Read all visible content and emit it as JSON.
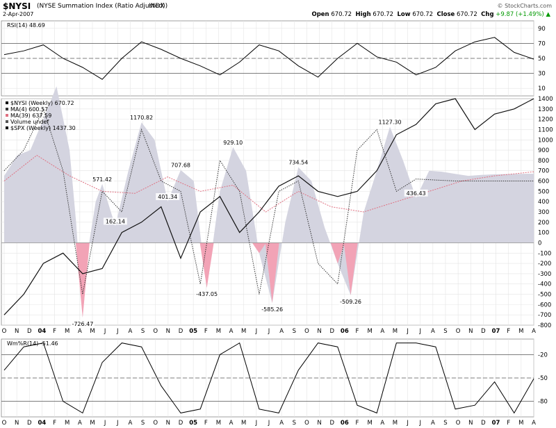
{
  "header": {
    "symbol": "$NYSI",
    "description": "(NYSE Summation Index (Ratio Adjusted))",
    "exchange": "INDX",
    "date": "2-Apr-2007",
    "brand": "© StockCharts.com",
    "open": "670.72",
    "high": "670.72",
    "low": "670.72",
    "close": "670.72",
    "chg": "+9.87 (+1.49%)",
    "open_label": "Open",
    "high_label": "High",
    "low_label": "Low",
    "close_label": "Close",
    "chg_label": "Chg",
    "up_arrow": "▲"
  },
  "colors": {
    "nysi_fill": "#d4d4e0",
    "neg_fill": "#f2a3b6",
    "ma39": "#e07080",
    "rsi_fill": "#707070",
    "grid": "#e4e4e4"
  },
  "chart_data": [
    {
      "type": "line",
      "panel": "rsi",
      "legend": "RSI(14) 48.69",
      "ylim": [
        0,
        100
      ],
      "yticks": [
        10,
        30,
        50,
        70,
        90
      ],
      "reference_lines": [
        30,
        50,
        70
      ],
      "x": [
        0,
        3,
        6,
        9,
        12,
        15,
        18,
        21,
        24,
        27,
        30,
        33,
        36,
        39,
        42,
        45,
        48,
        51,
        54,
        57,
        60,
        63,
        66,
        69,
        72,
        75,
        78,
        81
      ],
      "values": [
        55,
        60,
        68,
        50,
        38,
        22,
        50,
        72,
        62,
        50,
        40,
        28,
        45,
        68,
        60,
        40,
        25,
        50,
        70,
        52,
        45,
        28,
        38,
        60,
        72,
        78,
        58,
        49
      ]
    },
    {
      "type": "area",
      "panel": "main",
      "x_labels": [
        "O",
        "N",
        "D",
        "04",
        "F",
        "M",
        "A",
        "M",
        "J",
        "J",
        "A",
        "S",
        "O",
        "N",
        "D",
        "05",
        "F",
        "M",
        "A",
        "M",
        "J",
        "J",
        "A",
        "S",
        "O",
        "N",
        "D",
        "06",
        "F",
        "M",
        "A",
        "M",
        "J",
        "J",
        "A",
        "S",
        "O",
        "N",
        "D",
        "07",
        "F",
        "M",
        "A"
      ],
      "ylim": [
        -800,
        1400
      ],
      "yticks": [
        -800,
        -700,
        -600,
        -500,
        -400,
        -300,
        -200,
        -100,
        0,
        100,
        200,
        300,
        400,
        500,
        600,
        700,
        800,
        900,
        1000,
        1100,
        1200,
        1300,
        1400
      ],
      "legend": [
        {
          "text": "$NYSI (Weekly) 670.72"
        },
        {
          "text": "MA(4) 600.57"
        },
        {
          "text": "MA(39) 637.59"
        },
        {
          "text": "Volume undef"
        },
        {
          "text": "$SPX (Weekly) 1437.30"
        }
      ],
      "series": [
        {
          "name": "$NYSI (Weekly)",
          "x": [
            0,
            2,
            4,
            6,
            8,
            10,
            11,
            12,
            13,
            14,
            15,
            17,
            19,
            21,
            23,
            25,
            27,
            29,
            31,
            33,
            35,
            37,
            39,
            41,
            43,
            45,
            47,
            49,
            51,
            53,
            55,
            57,
            59,
            61,
            63,
            65,
            67,
            69,
            71,
            73,
            75,
            77,
            79,
            81
          ],
          "values": [
            650,
            850,
            900,
            1200,
            1520,
            900,
            200,
            -726,
            0,
            400,
            571,
            162,
            700,
            1170,
            1000,
            401,
            707,
            600,
            -437,
            500,
            929,
            700,
            -100,
            -585,
            200,
            734,
            600,
            150,
            -200,
            -509,
            300,
            700,
            1127,
            800,
            436,
            700,
            690,
            670,
            650,
            660,
            665,
            668,
            670,
            671
          ]
        },
        {
          "name": "MA(4)",
          "x": [
            0,
            3,
            6,
            9,
            12,
            15,
            18,
            21,
            24,
            27,
            30,
            33,
            36,
            39,
            42,
            45,
            48,
            51,
            54,
            57,
            60,
            63,
            66,
            69,
            72,
            75,
            78,
            81
          ],
          "values": [
            700,
            900,
            1300,
            700,
            -500,
            500,
            300,
            1100,
            600,
            500,
            -400,
            800,
            500,
            -500,
            500,
            600,
            -200,
            -400,
            900,
            1100,
            500,
            620,
            610,
            600,
            600,
            600,
            600,
            600
          ]
        },
        {
          "name": "MA(39)",
          "x": [
            0,
            5,
            10,
            15,
            20,
            25,
            30,
            35,
            40,
            45,
            50,
            55,
            60,
            65,
            70,
            75,
            81
          ],
          "values": [
            600,
            850,
            650,
            500,
            480,
            640,
            500,
            560,
            300,
            500,
            350,
            300,
            400,
            500,
            600,
            650,
            690
          ]
        },
        {
          "name": "$SPX (Weekly)",
          "x": [
            0,
            3,
            6,
            9,
            12,
            15,
            18,
            21,
            24,
            27,
            30,
            33,
            36,
            39,
            42,
            45,
            48,
            51,
            54,
            57,
            60,
            63,
            66,
            69,
            72,
            75,
            78,
            81
          ],
          "values": [
            -700,
            -500,
            -200,
            -100,
            -300,
            -250,
            100,
            200,
            350,
            -150,
            300,
            450,
            100,
            300,
            550,
            650,
            500,
            450,
            500,
            700,
            1050,
            1150,
            1350,
            1400,
            1100,
            1250,
            1300,
            1400
          ]
        }
      ],
      "annotations": [
        {
          "x": 12,
          "y": -726.47,
          "text": "-726.47"
        },
        {
          "x": 15,
          "y": 571.42,
          "text": "571.42"
        },
        {
          "x": 17,
          "y": 162.14,
          "text": "162.14"
        },
        {
          "x": 21,
          "y": 1170.82,
          "text": "1170.82"
        },
        {
          "x": 25,
          "y": 401.34,
          "text": "401.34"
        },
        {
          "x": 27,
          "y": 707.68,
          "text": "707.68"
        },
        {
          "x": 31,
          "y": -437.05,
          "text": "-437.05"
        },
        {
          "x": 35,
          "y": 929.1,
          "text": "929.10"
        },
        {
          "x": 41,
          "y": -585.26,
          "text": "-585.26"
        },
        {
          "x": 45,
          "y": 734.54,
          "text": "734.54"
        },
        {
          "x": 53,
          "y": -509.26,
          "text": "-509.26"
        },
        {
          "x": 59,
          "y": 1127.3,
          "text": "1127.30"
        },
        {
          "x": 63,
          "y": 436.43,
          "text": "436.43"
        }
      ]
    },
    {
      "type": "line",
      "panel": "williams",
      "legend": "Wm%R(14) -51.46",
      "ylim": [
        -100,
        0
      ],
      "yticks": [
        -80,
        -50,
        -20
      ],
      "reference_lines": [
        -80,
        -50,
        -20
      ],
      "x": [
        0,
        3,
        6,
        9,
        12,
        15,
        18,
        21,
        24,
        27,
        30,
        33,
        36,
        39,
        42,
        45,
        48,
        51,
        54,
        57,
        60,
        63,
        66,
        69,
        72,
        75,
        78,
        81
      ],
      "values": [
        -40,
        -10,
        -5,
        -80,
        -95,
        -30,
        -5,
        -10,
        -60,
        -95,
        -90,
        -20,
        -5,
        -90,
        -95,
        -40,
        -5,
        -10,
        -85,
        -95,
        -5,
        -5,
        -10,
        -90,
        -85,
        -55,
        -95,
        -51
      ]
    }
  ]
}
